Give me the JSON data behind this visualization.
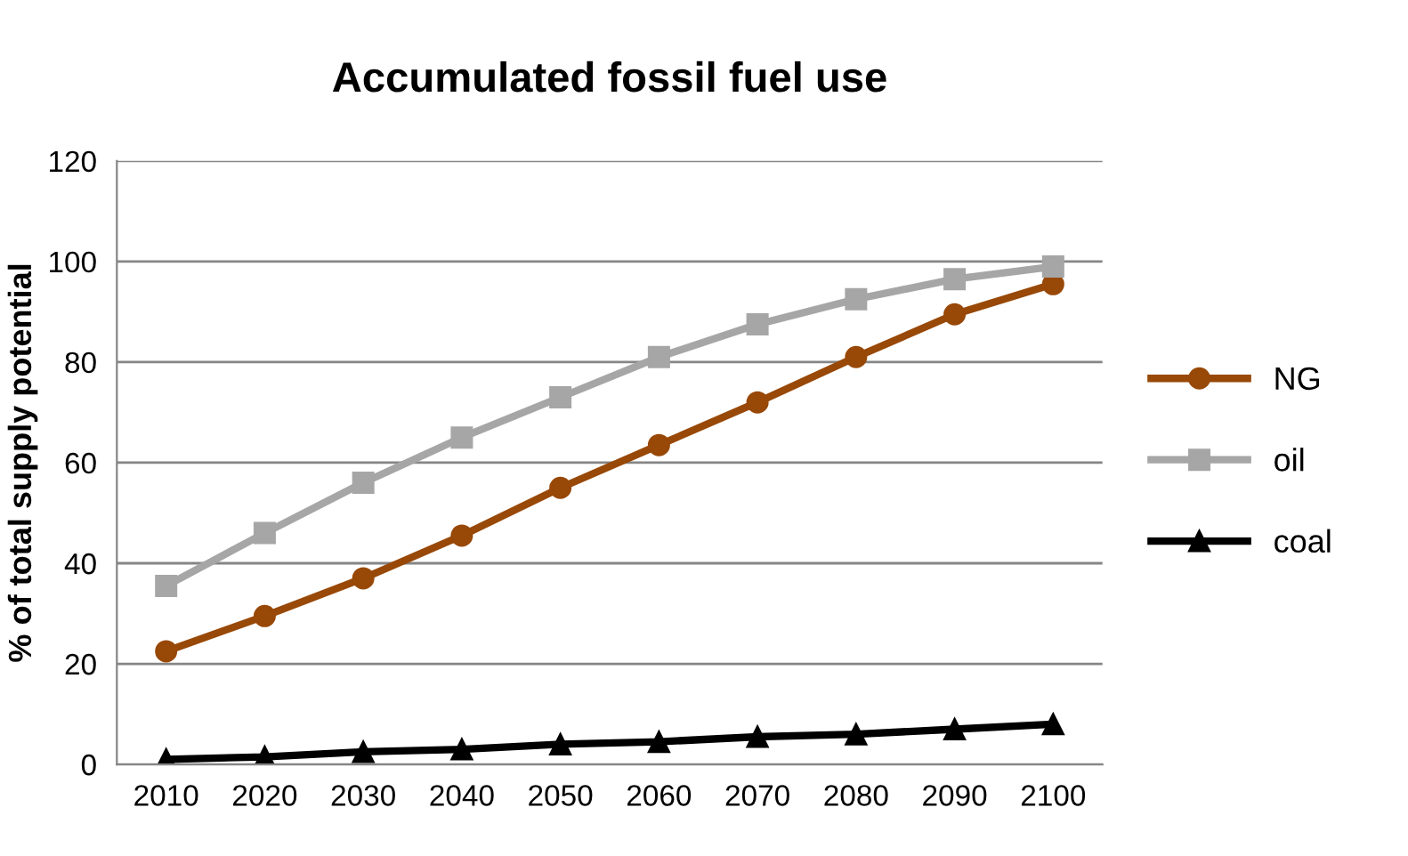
{
  "chart_data": {
    "type": "line",
    "title": "Accumulated fossil fuel use",
    "ylabel": "% of total supply potential",
    "categories": [
      "2010",
      "2020",
      "2030",
      "2040",
      "2050",
      "2060",
      "2070",
      "2080",
      "2090",
      "2100"
    ],
    "series": [
      {
        "name": "NG",
        "color": "#984807",
        "marker": "circle",
        "values": [
          22.5,
          29.5,
          37,
          45.5,
          55,
          63.5,
          72,
          81,
          89.5,
          95.5
        ]
      },
      {
        "name": "oil",
        "color": "#a6a6a6",
        "marker": "square",
        "values": [
          35.5,
          46,
          56,
          65,
          73,
          81,
          87.5,
          92.5,
          96.5,
          99
        ]
      },
      {
        "name": "coal",
        "color": "#000000",
        "marker": "triangle",
        "values": [
          1,
          1.5,
          2.5,
          3,
          4,
          4.5,
          5.5,
          6,
          7,
          8
        ]
      }
    ],
    "ylim": [
      0,
      120
    ],
    "yticks": [
      0,
      20,
      40,
      60,
      80,
      100,
      120
    ],
    "grid": "y",
    "legend": "right",
    "line_style": "solid"
  }
}
